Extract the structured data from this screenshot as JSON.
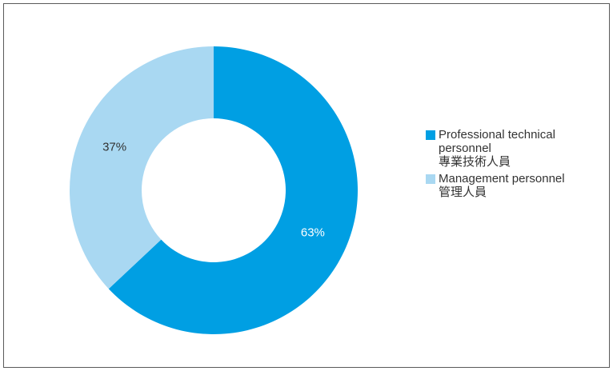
{
  "chart_data": {
    "type": "donut",
    "categories": [
      "Professional technical personnel 專業技術人員",
      "Management personnel 管理人員"
    ],
    "values": [
      63,
      37
    ],
    "value_labels": [
      "63%",
      "37%"
    ],
    "colors": [
      "#009fe3",
      "#a9d8f2"
    ],
    "label_colors": [
      "#ffffff",
      "#333333"
    ],
    "legend": [
      {
        "line1": "Professional technical",
        "line2": "personnel",
        "line3": "專業技術人員",
        "color": "#009fe3"
      },
      {
        "line1": "Management personnel",
        "line2": "管理人員",
        "color": "#a9d8f2"
      }
    ],
    "legend_position": "right",
    "title": "",
    "start_angle_deg": 0,
    "direction": "clockwise"
  }
}
